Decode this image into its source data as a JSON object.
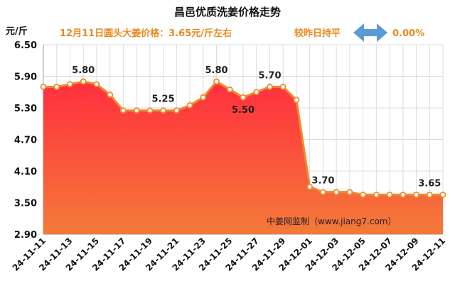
{
  "header": {
    "title": "昌邑优质洗姜价格走势",
    "subtitle": "12月11日圆头大姜价格：3.65元/斤左右",
    "change_text": "较昨日持平",
    "change_value": "0.00%",
    "arrow_icon": "double-arrow-icon"
  },
  "watermark": "中姜网监制（www.jiang7.com）",
  "colors": {
    "line": "#ee8a2e",
    "area_top": "#ff2f3e",
    "area_bottom": "#f47a39",
    "grid": "#dcdcdc",
    "arrow": "#5b9bd5",
    "accent_text": "#e8891e"
  },
  "chart_data": {
    "type": "area",
    "title": "昌邑优质洗姜价格走势",
    "ylabel": "元/斤",
    "xlabel": "",
    "ylim": [
      2.9,
      6.5
    ],
    "yticks": [
      "6.50",
      "5.90",
      "5.30",
      "4.70",
      "4.10",
      "3.50",
      "2.90"
    ],
    "grid": true,
    "x": [
      "24-11-11",
      "24-11-12",
      "24-11-13",
      "24-11-14",
      "24-11-15",
      "24-11-16",
      "24-11-17",
      "24-11-18",
      "24-11-19",
      "24-11-20",
      "24-11-21",
      "24-11-22",
      "24-11-23",
      "24-11-24",
      "24-11-25",
      "24-11-26",
      "24-11-27",
      "24-11-28",
      "24-11-29",
      "24-11-30",
      "24-12-01",
      "24-12-02",
      "24-12-03",
      "24-12-04",
      "24-12-05",
      "24-12-06",
      "24-12-07",
      "24-12-08",
      "24-12-09",
      "24-12-10",
      "24-12-11"
    ],
    "xtick_labels": [
      "24-11-11",
      "24-11-13",
      "24-11-15",
      "24-11-17",
      "24-11-19",
      "24-11-21",
      "24-11-23",
      "24-11-25",
      "24-11-27",
      "24-11-29",
      "24-12-01",
      "24-12-03",
      "24-12-05",
      "24-12-07",
      "24-12-09",
      "24-12-11"
    ],
    "values": [
      5.7,
      5.7,
      5.75,
      5.8,
      5.75,
      5.55,
      5.25,
      5.25,
      5.25,
      5.25,
      5.25,
      5.35,
      5.5,
      5.8,
      5.65,
      5.5,
      5.6,
      5.7,
      5.7,
      5.45,
      3.8,
      3.7,
      3.7,
      3.7,
      3.65,
      3.65,
      3.65,
      3.65,
      3.65,
      3.65,
      3.65
    ],
    "data_labels": [
      {
        "index": 3,
        "text": "5.80"
      },
      {
        "index": 9,
        "text": "5.25"
      },
      {
        "index": 13,
        "text": "5.80"
      },
      {
        "index": 15,
        "text": "5.50"
      },
      {
        "index": 17,
        "text": "5.70"
      },
      {
        "index": 21,
        "text": "3.70"
      },
      {
        "index": 29,
        "text": "3.65"
      }
    ]
  }
}
